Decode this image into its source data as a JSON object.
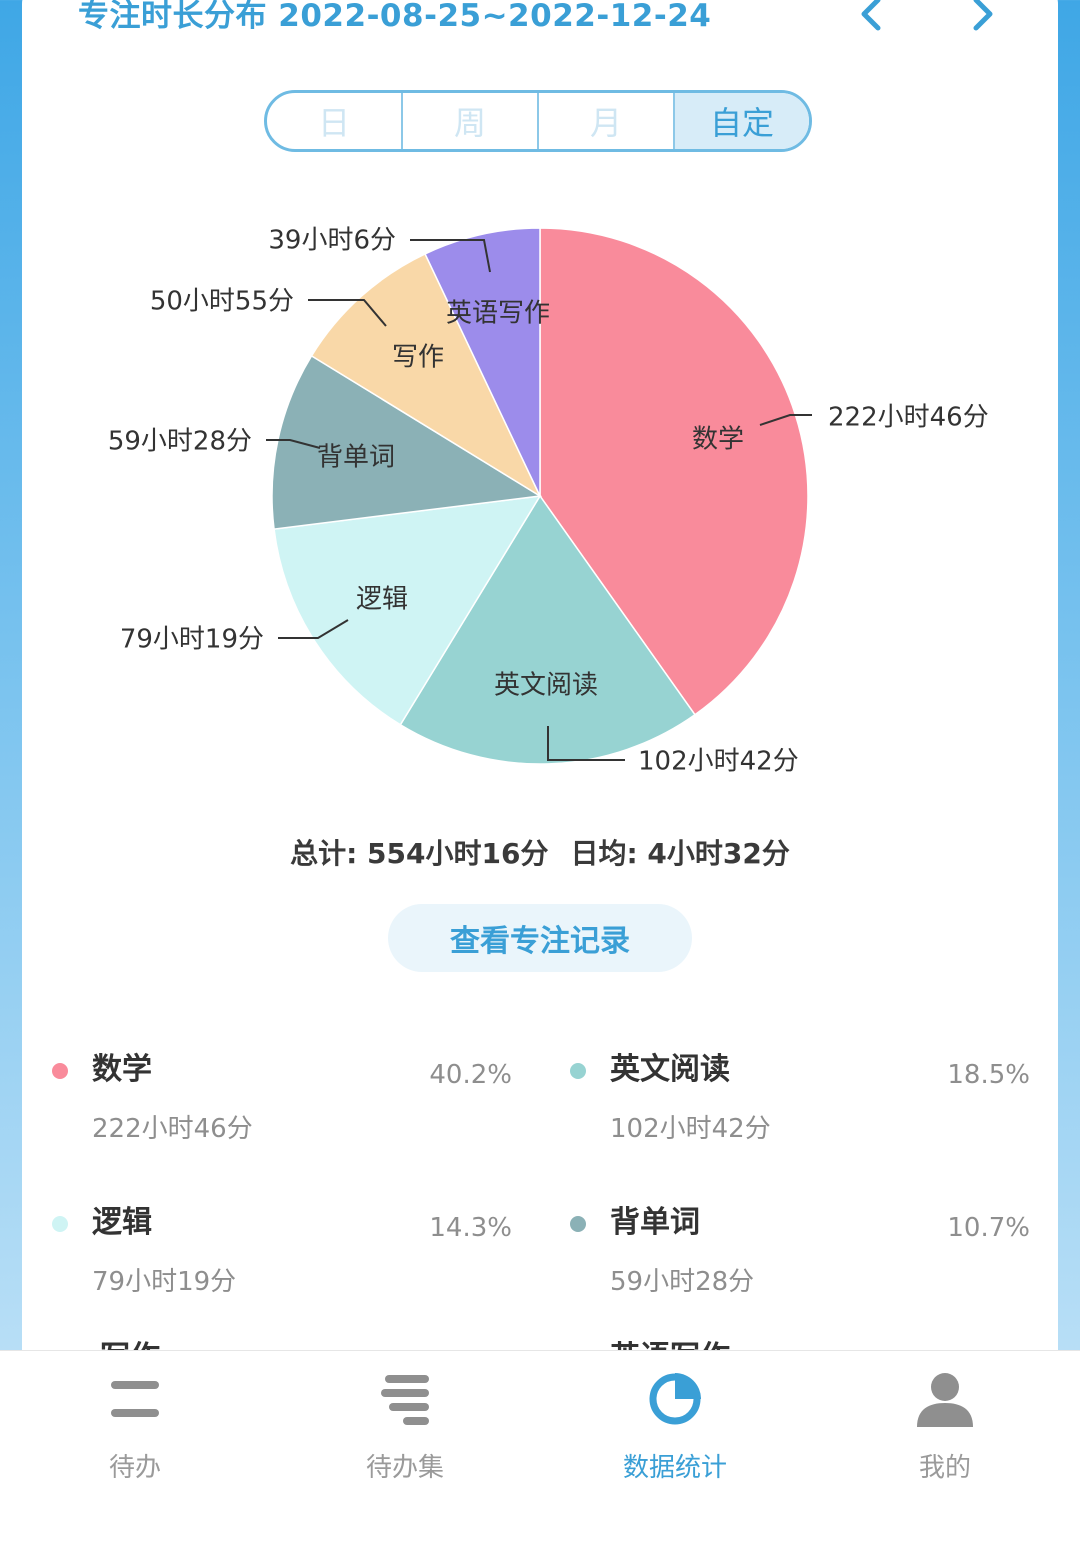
{
  "header": {
    "title": "专注时长分布 2022-08-25~2022-12-24",
    "prev_icon": "chevron-left-icon",
    "next_icon": "chevron-right-icon",
    "accent_color": "#3a9fd6"
  },
  "segments": [
    {
      "label": "日",
      "active": false
    },
    {
      "label": "周",
      "active": false
    },
    {
      "label": "月",
      "active": false
    },
    {
      "label": "自定",
      "active": true
    }
  ],
  "chart_data": {
    "type": "pie",
    "title": "",
    "slices": [
      {
        "name": "数学",
        "value_minutes": 13366,
        "value_label": "222小时46分",
        "color": "#f98b9b"
      },
      {
        "name": "英文阅读",
        "value_minutes": 6162,
        "value_label": "102小时42分",
        "color": "#97d3d2"
      },
      {
        "name": "逻辑",
        "value_minutes": 4759,
        "value_label": "79小时19分",
        "color": "#cff4f4"
      },
      {
        "name": "背单词",
        "value_minutes": 3568,
        "value_label": "59小时28分",
        "color": "#8bb1b6"
      },
      {
        "name": "写作",
        "value_minutes": 3055,
        "value_label": "50小时55分",
        "color": "#f9d8a8"
      },
      {
        "name": "英语写作",
        "value_minutes": 2346,
        "value_label": "39小时6分",
        "color": "#9c8ceb"
      }
    ],
    "start_angle": "12 o'clock",
    "direction": "clockwise",
    "labels": "inside names, outside values with leader lines"
  },
  "summary": {
    "total": "总计: 554小时16分",
    "daily": "日均: 4小时32分"
  },
  "records_button": "查看专注记录",
  "legend": [
    {
      "name": "数学",
      "time": "222小时46分",
      "pct": "40.2%",
      "color": "#f98b9b"
    },
    {
      "name": "英文阅读",
      "time": "102小时42分",
      "pct": "18.5%",
      "color": "#97d3d2"
    },
    {
      "name": "逻辑",
      "time": "79小时19分",
      "pct": "14.3%",
      "color": "#cff4f4"
    },
    {
      "name": "背单词",
      "time": "59小时28分",
      "pct": "10.7%",
      "color": "#8bb1b6"
    },
    {
      "name": "写作",
      "time": "",
      "pct": "",
      "color": "#f9d8a8"
    },
    {
      "name": "英语写作",
      "time": "",
      "pct": "",
      "color": "#9c8ceb"
    }
  ],
  "tabs": [
    {
      "label": "待办",
      "icon": "todo-icon",
      "active": false
    },
    {
      "label": "待办集",
      "icon": "todo-list-icon",
      "active": false
    },
    {
      "label": "数据统计",
      "icon": "pie-chart-icon",
      "active": true
    },
    {
      "label": "我的",
      "icon": "user-icon",
      "active": false
    }
  ]
}
